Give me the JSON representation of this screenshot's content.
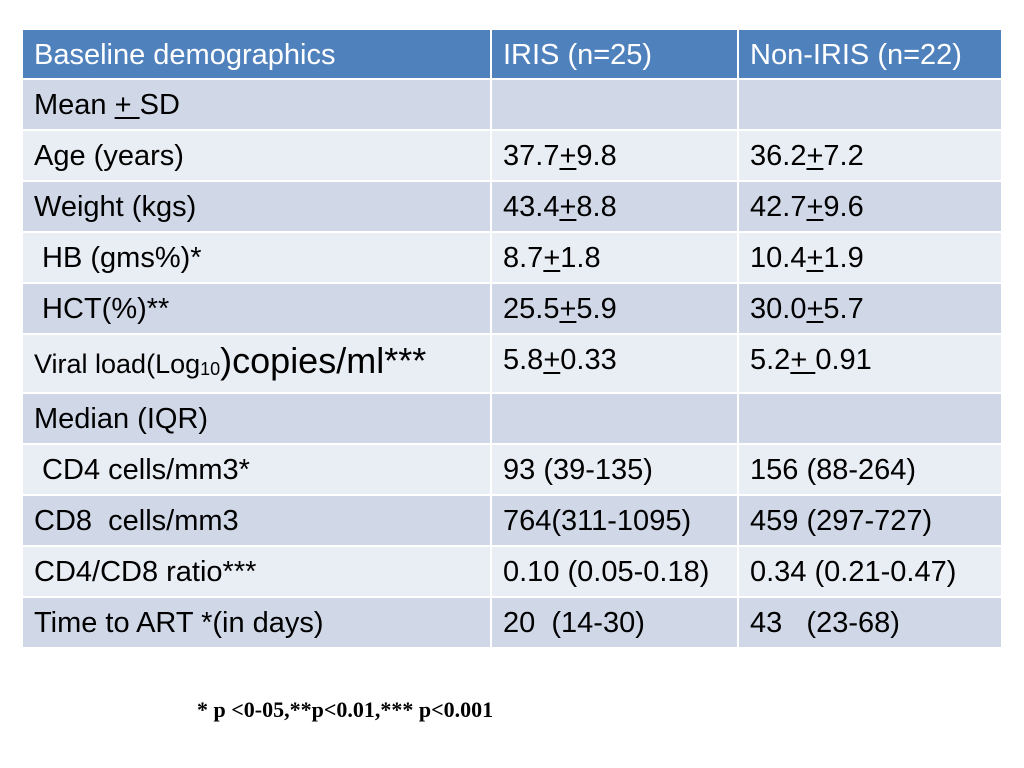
{
  "table": {
    "headers": [
      "Baseline demographics",
      "IRIS (n=25)",
      "Non-IRIS (n=22)"
    ],
    "rows": [
      {
        "label": "Mean + SD"
      },
      {
        "label": "Age (years)",
        "iris": "37.7+9.8",
        "non_iris": "36.2+7.2"
      },
      {
        "label": "Weight (kgs)",
        "iris": "43.4+8.8",
        "non_iris": "42.7+9.6"
      },
      {
        "label": " HB (gms%)*",
        "iris": "8.7+1.8",
        "non_iris": "10.4+1.9"
      },
      {
        "label": " HCT(%)**",
        "iris": "25.5+5.9",
        "non_iris": "30.0+5.7"
      },
      {
        "label_parts": [
          "Viral load(Log",
          "10",
          ")copies/ml***"
        ],
        "iris": "5.8+0.33",
        "non_iris": "5.2+ 0.91"
      },
      {
        "label": "Median (IQR)"
      },
      {
        "label": " CD4 cells/mm3*",
        "iris": "93 (39-135)",
        "non_iris": "156 (88-264)"
      },
      {
        "label": "CD8  cells/mm3",
        "iris": "764(311-1095)",
        "non_iris": "459 (297-727)"
      },
      {
        "label": "CD4/CD8 ratio***",
        "iris": "0.10 (0.05-0.18)",
        "non_iris": "0.34 (0.21-0.47)"
      },
      {
        "label": "Time to ART *(in days)",
        "iris": "20  (14-30)",
        "non_iris": "43   (23-68)"
      }
    ]
  },
  "footnote": "* p <0-05,**p<0.01,*** p<0.001",
  "colors": {
    "header": "#4F81BD",
    "row_dark": "#D0D8E8",
    "row_light": "#E9EDF4",
    "header_text": "#FFFFFF"
  }
}
